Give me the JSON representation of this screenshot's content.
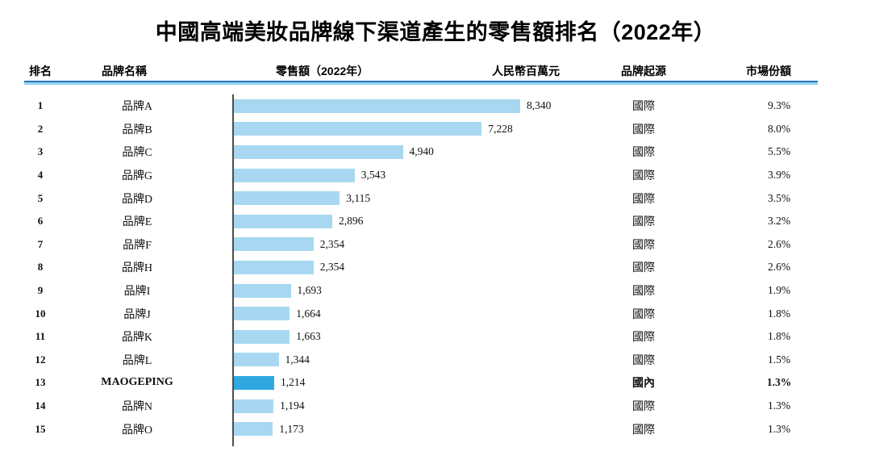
{
  "title": "中國高端美妝品牌線下渠道產生的零售額排名（2022年）",
  "header": {
    "rank": "排名",
    "brand": "品牌名稱",
    "retail": "零售額（2022年）",
    "unit": "人民幣百萬元",
    "origin": "品牌起源",
    "share": "市場份額"
  },
  "colors": {
    "bar": "#A8D8F1",
    "bar_highlight": "#2FA8E0",
    "rule_top": "#2E74B5",
    "rule_bottom": "#92D3F0",
    "axis_line": "#4D4D4D"
  },
  "chart_data": {
    "type": "bar",
    "orientation": "horizontal",
    "title": "中國高端美妝品牌線下渠道產生的零售額排名（2022年）",
    "value_axis_label": "人民幣百萬元",
    "value_axis_max": 8340,
    "legend": "none",
    "grid": "off",
    "rows": [
      {
        "rank": "1",
        "brand": "品牌A",
        "value": 8340,
        "value_label": "8,340",
        "origin": "國際",
        "share": "9.3%",
        "highlight": false
      },
      {
        "rank": "2",
        "brand": "品牌B",
        "value": 7228,
        "value_label": "7,228",
        "origin": "國際",
        "share": "8.0%",
        "highlight": false
      },
      {
        "rank": "3",
        "brand": "品牌C",
        "value": 4940,
        "value_label": "4,940",
        "origin": "國際",
        "share": "5.5%",
        "highlight": false
      },
      {
        "rank": "4",
        "brand": "品牌G",
        "value": 3543,
        "value_label": "3,543",
        "origin": "國際",
        "share": "3.9%",
        "highlight": false
      },
      {
        "rank": "5",
        "brand": "品牌D",
        "value": 3115,
        "value_label": "3,115",
        "origin": "國際",
        "share": "3.5%",
        "highlight": false
      },
      {
        "rank": "6",
        "brand": "品牌E",
        "value": 2896,
        "value_label": "2,896",
        "origin": "國際",
        "share": "3.2%",
        "highlight": false
      },
      {
        "rank": "7",
        "brand": "品牌F",
        "value": 2354,
        "value_label": "2,354",
        "origin": "國際",
        "share": "2.6%",
        "highlight": false
      },
      {
        "rank": "8",
        "brand": "品牌H",
        "value": 2354,
        "value_label": "2,354",
        "origin": "國際",
        "share": "2.6%",
        "highlight": false
      },
      {
        "rank": "9",
        "brand": "品牌I",
        "value": 1693,
        "value_label": "1,693",
        "origin": "國際",
        "share": "1.9%",
        "highlight": false
      },
      {
        "rank": "10",
        "brand": "品牌J",
        "value": 1664,
        "value_label": "1,664",
        "origin": "國際",
        "share": "1.8%",
        "highlight": false
      },
      {
        "rank": "11",
        "brand": "品牌K",
        "value": 1663,
        "value_label": "1,663",
        "origin": "國際",
        "share": "1.8%",
        "highlight": false
      },
      {
        "rank": "12",
        "brand": "品牌L",
        "value": 1344,
        "value_label": "1,344",
        "origin": "國際",
        "share": "1.5%",
        "highlight": false
      },
      {
        "rank": "13",
        "brand": "MAOGEPING",
        "value": 1214,
        "value_label": "1,214",
        "origin": "國內",
        "share": "1.3%",
        "highlight": true
      },
      {
        "rank": "14",
        "brand": "品牌N",
        "value": 1194,
        "value_label": "1,194",
        "origin": "國際",
        "share": "1.3%",
        "highlight": false
      },
      {
        "rank": "15",
        "brand": "品牌O",
        "value": 1173,
        "value_label": "1,173",
        "origin": "國際",
        "share": "1.3%",
        "highlight": false
      }
    ]
  }
}
